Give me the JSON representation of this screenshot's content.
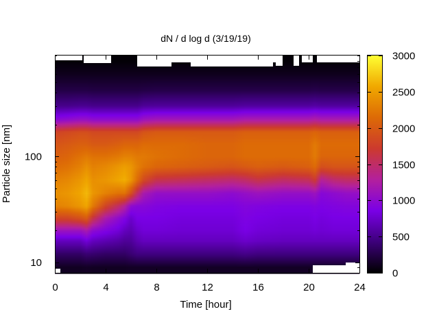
{
  "chart_data": {
    "type": "heatmap",
    "title": "dN / d log d (3/19/19)",
    "xlabel": "Time [hour]",
    "ylabel": "Particle size [nm]",
    "x_ticks": [
      "0",
      "4",
      "8",
      "12",
      "16",
      "20",
      "24"
    ],
    "x_tick_values": [
      0,
      4,
      8,
      12,
      16,
      20,
      24
    ],
    "xlim": [
      0,
      24
    ],
    "y_scale": "log",
    "y_ticks": [
      "10",
      "100"
    ],
    "y_tick_values": [
      10,
      100
    ],
    "ylim": [
      8,
      900
    ],
    "colorbar": {
      "range": [
        0,
        3000
      ],
      "ticks": [
        "0",
        "500",
        "1000",
        "1500",
        "2000",
        "2500",
        "3000"
      ],
      "tick_values": [
        0,
        500,
        1000,
        1500,
        2000,
        2500,
        3000
      ],
      "colormap": [
        "#000000",
        "#3d007a",
        "#7a00e6",
        "#b3209d",
        "#cc3a2e",
        "#dd6a06",
        "#f0a800",
        "#ffff33"
      ]
    },
    "grid": false,
    "time_hours": [
      0,
      1,
      2,
      2.5,
      3,
      4,
      5,
      5.5,
      6,
      6.5,
      7,
      8,
      10,
      12,
      14,
      15,
      16,
      18,
      20,
      20.5,
      21,
      22,
      23,
      24
    ],
    "size_bins_nm": [
      9,
      12,
      16,
      20,
      26,
      34,
      45,
      60,
      80,
      100,
      130,
      170,
      220,
      300,
      420,
      600,
      800
    ],
    "values": [
      [
        120,
        350,
        700,
        1100,
        1800,
        2300,
        2400,
        2300,
        2150,
        2050,
        1950,
        1800,
        1000,
        500,
        250,
        100,
        20
      ],
      [
        120,
        350,
        700,
        1100,
        1800,
        2350,
        2450,
        2350,
        2200,
        2100,
        2000,
        1850,
        1050,
        500,
        250,
        100,
        20
      ],
      [
        120,
        350,
        700,
        1100,
        1900,
        2450,
        2550,
        2450,
        2300,
        2200,
        2050,
        1900,
        1100,
        520,
        250,
        100,
        20
      ],
      [
        130,
        400,
        800,
        1200,
        2000,
        2550,
        2650,
        2550,
        2400,
        2250,
        2050,
        1900,
        1100,
        520,
        250,
        100,
        20
      ],
      [
        120,
        380,
        700,
        1000,
        1600,
        2250,
        2450,
        2400,
        2300,
        2200,
        2000,
        1850,
        1050,
        500,
        240,
        100,
        20
      ],
      [
        120,
        350,
        650,
        900,
        1200,
        1800,
        2300,
        2450,
        2350,
        2200,
        2000,
        1850,
        1050,
        500,
        240,
        100,
        20
      ],
      [
        120,
        350,
        600,
        800,
        1000,
        1500,
        2200,
        2550,
        2450,
        2250,
        2050,
        1850,
        1050,
        500,
        240,
        100,
        20
      ],
      [
        120,
        350,
        550,
        700,
        900,
        1300,
        2200,
        2600,
        2500,
        2300,
        2100,
        1850,
        1050,
        500,
        240,
        100,
        20
      ],
      [
        130,
        400,
        550,
        650,
        750,
        1000,
        1900,
        2450,
        2450,
        2300,
        2100,
        1850,
        1050,
        500,
        240,
        100,
        20
      ],
      [
        130,
        450,
        650,
        750,
        850,
        950,
        1500,
        2150,
        2300,
        2250,
        2100,
        1850,
        1050,
        500,
        240,
        100,
        20
      ],
      [
        130,
        450,
        700,
        800,
        850,
        950,
        1200,
        1850,
        2200,
        2250,
        2150,
        1950,
        1150,
        550,
        250,
        100,
        20
      ],
      [
        130,
        450,
        700,
        800,
        850,
        900,
        1050,
        1600,
        2100,
        2200,
        2150,
        2000,
        1200,
        560,
        260,
        100,
        20
      ],
      [
        130,
        450,
        700,
        780,
        820,
        880,
        1050,
        1550,
        2050,
        2150,
        2150,
        2000,
        1200,
        560,
        260,
        100,
        20
      ],
      [
        130,
        450,
        700,
        780,
        820,
        880,
        1050,
        1500,
        2000,
        2100,
        2100,
        2000,
        1200,
        560,
        260,
        100,
        20
      ],
      [
        130,
        450,
        700,
        780,
        820,
        880,
        1000,
        1450,
        1950,
        2100,
        2100,
        2000,
        1200,
        560,
        260,
        100,
        20
      ],
      [
        130,
        480,
        750,
        850,
        880,
        920,
        1050,
        1500,
        2000,
        2150,
        2150,
        2050,
        1250,
        580,
        260,
        100,
        20
      ],
      [
        130,
        450,
        720,
        800,
        850,
        900,
        1100,
        1600,
        2050,
        2150,
        2150,
        2050,
        1250,
        580,
        260,
        100,
        20
      ],
      [
        130,
        450,
        700,
        780,
        820,
        880,
        1050,
        1500,
        2000,
        2150,
        2150,
        2050,
        1250,
        580,
        260,
        100,
        20
      ],
      [
        130,
        450,
        700,
        780,
        820,
        880,
        1050,
        1550,
        2050,
        2150,
        2150,
        2050,
        1250,
        580,
        260,
        100,
        20
      ],
      [
        130,
        450,
        700,
        800,
        850,
        900,
        1100,
        1700,
        2150,
        2250,
        2250,
        2100,
        1300,
        600,
        270,
        100,
        20
      ],
      [
        130,
        450,
        700,
        780,
        820,
        880,
        950,
        1300,
        1900,
        2100,
        2150,
        2050,
        1250,
        580,
        260,
        100,
        20
      ],
      [
        130,
        450,
        700,
        800,
        850,
        900,
        1000,
        1450,
        1950,
        2100,
        2150,
        2050,
        1250,
        580,
        260,
        100,
        20
      ],
      [
        130,
        450,
        700,
        800,
        850,
        920,
        1050,
        1500,
        1950,
        2100,
        2150,
        2050,
        1250,
        580,
        260,
        100,
        20
      ],
      [
        130,
        450,
        700,
        800,
        850,
        920,
        1050,
        1500,
        1950,
        2100,
        2150,
        2050,
        1250,
        580,
        260,
        100,
        20
      ]
    ]
  }
}
